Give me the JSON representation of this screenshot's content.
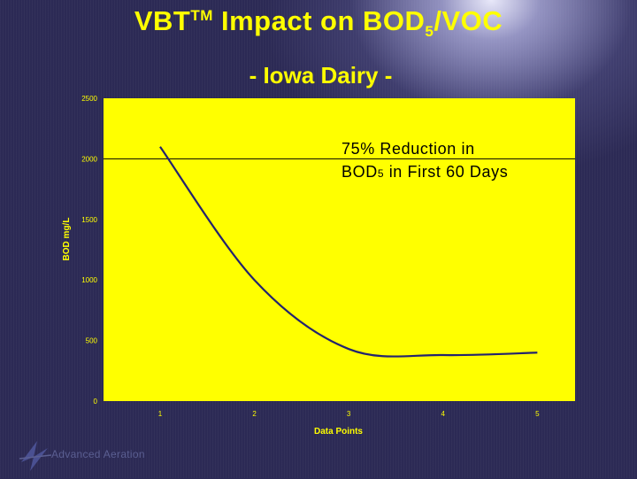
{
  "slide": {
    "title_main": "VBT",
    "title_sup": "TM",
    "title_rest": " Impact on BOD",
    "title_sub": "5",
    "title_tail": "/VOC",
    "subtitle": "- Iowa Dairy -",
    "annotation_line1": "75% Reduction in",
    "annotation_line2_pre": "BOD",
    "annotation_line2_sub": "5",
    "annotation_line2_post": " in First 60 Days",
    "logo_text": "Advanced Aeration"
  },
  "colors": {
    "background": "#2c2a55",
    "plot_area": "#ffff00",
    "text_accent": "#ffff00",
    "line": "#23236e"
  },
  "chart_data": {
    "type": "line",
    "xlabel": "Data Points",
    "ylabel": "BOD mg/L",
    "x": [
      1,
      2,
      3,
      4,
      5
    ],
    "series": [
      {
        "values": [
          2100,
          1000,
          430,
          380,
          400
        ]
      }
    ],
    "xlim": [
      0.4,
      5.4
    ],
    "ylim": [
      0,
      2500
    ],
    "yticks": [
      0,
      500,
      1000,
      1500,
      2000,
      2500
    ],
    "xticks": [
      1,
      2,
      3,
      4,
      5
    ],
    "reference_line": 2000,
    "grid": false,
    "legend": "none"
  }
}
